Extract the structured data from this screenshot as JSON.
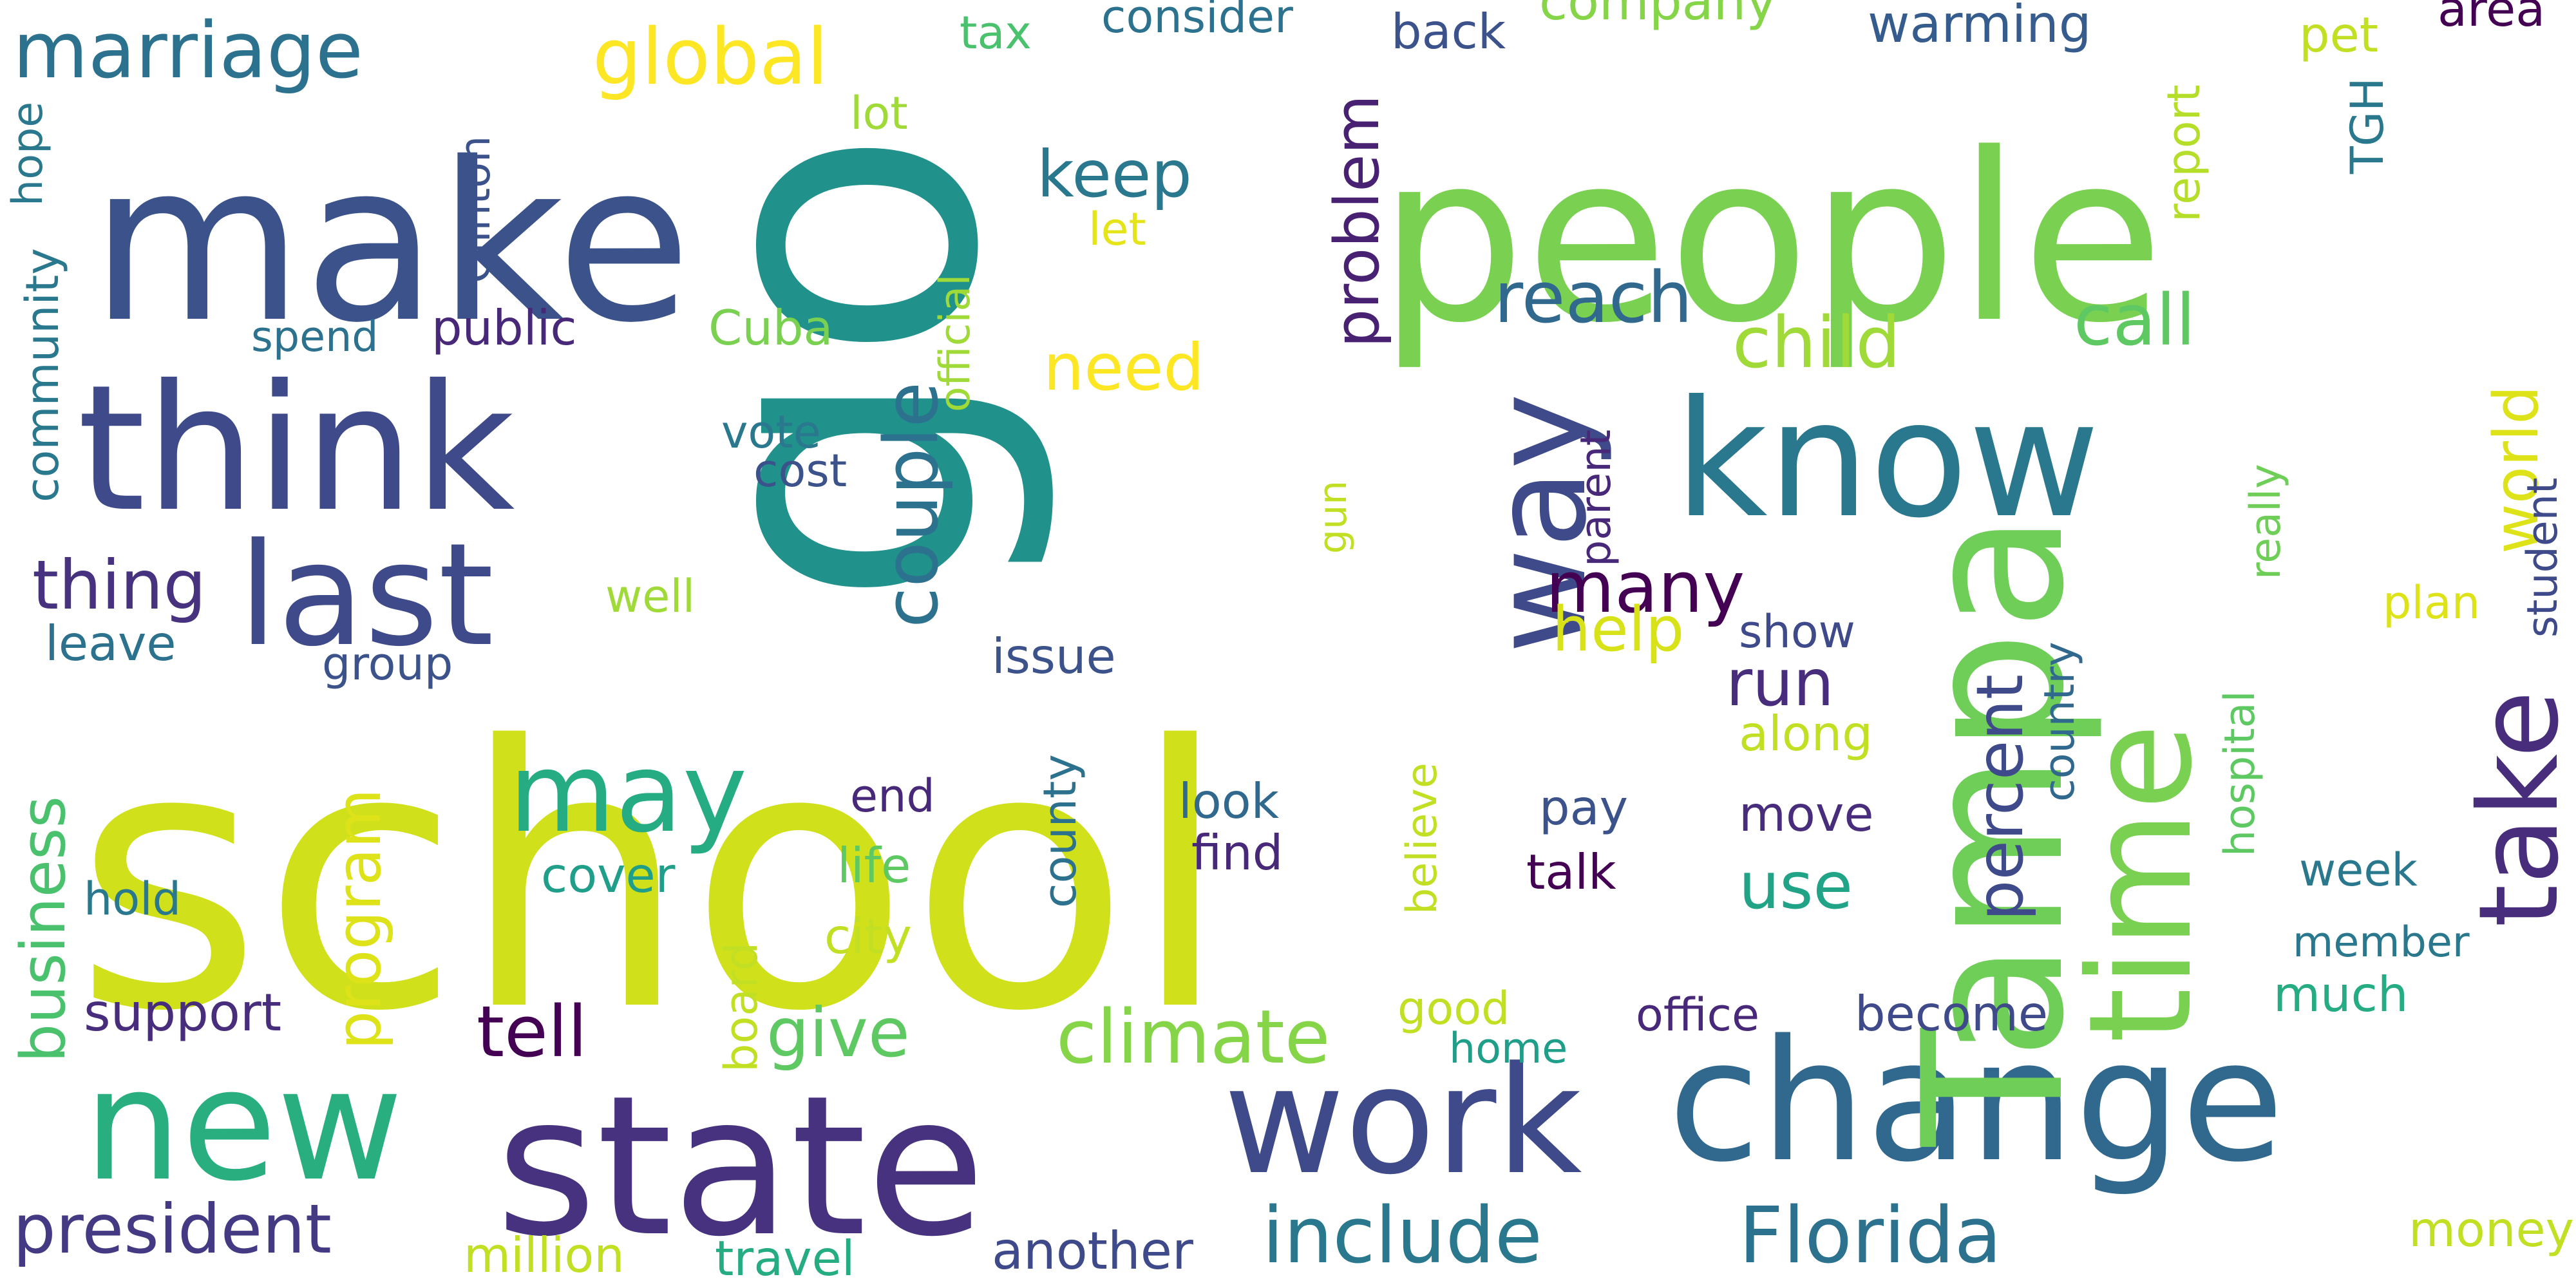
{
  "words": [
    {
      "text": "school",
      "color": "#d0e11c"
    },
    {
      "text": "go",
      "color": "#21918c"
    },
    {
      "text": "people",
      "color": "#7ad151"
    },
    {
      "text": "make",
      "color": "#3b528b"
    },
    {
      "text": "think",
      "color": "#3e4a89"
    },
    {
      "text": "state",
      "color": "#46327e"
    },
    {
      "text": "change",
      "color": "#31688e"
    },
    {
      "text": "new",
      "color": "#29af7f"
    },
    {
      "text": "work",
      "color": "#3e4a89"
    },
    {
      "text": "Tampa",
      "color": "#6ece58"
    },
    {
      "text": "know",
      "color": "#2a788e"
    },
    {
      "text": "time",
      "color": "#7ad151"
    },
    {
      "text": "way",
      "color": "#3e4a89"
    },
    {
      "text": "last",
      "color": "#3e4a89"
    },
    {
      "text": "take",
      "color": "#472d7b"
    },
    {
      "text": "may",
      "color": "#25ac82"
    },
    {
      "text": "include",
      "color": "#2a788e"
    },
    {
      "text": "Florida",
      "color": "#2c728e"
    },
    {
      "text": "president",
      "color": "#443983"
    },
    {
      "text": "couple",
      "color": "#2c728e"
    },
    {
      "text": "marriage",
      "color": "#2c728e"
    },
    {
      "text": "global",
      "color": "#fde725"
    },
    {
      "text": "climate",
      "color": "#86d549"
    },
    {
      "text": "many",
      "color": "#440154"
    },
    {
      "text": "problem",
      "color": "#482173"
    },
    {
      "text": "reach",
      "color": "#31688e"
    },
    {
      "text": "child",
      "color": "#a0da39"
    },
    {
      "text": "call",
      "color": "#5ec962"
    },
    {
      "text": "keep",
      "color": "#2a788e"
    },
    {
      "text": "thing",
      "color": "#46327e"
    },
    {
      "text": "run",
      "color": "#472d7b"
    },
    {
      "text": "percent",
      "color": "#3e4a89"
    },
    {
      "text": "give",
      "color": "#5ec962"
    },
    {
      "text": "tell",
      "color": "#440154"
    },
    {
      "text": "business",
      "color": "#4ac16d"
    },
    {
      "text": "program",
      "color": "#dde318"
    },
    {
      "text": "need",
      "color": "#fde725"
    },
    {
      "text": "help",
      "color": "#d8e219"
    },
    {
      "text": "use",
      "color": "#20a386"
    },
    {
      "text": "world",
      "color": "#dde318"
    },
    {
      "text": "warming",
      "color": "#365c8d"
    },
    {
      "text": "company",
      "color": "#86d549"
    },
    {
      "text": "back",
      "color": "#3b528b"
    },
    {
      "text": "consider",
      "color": "#2c728e"
    },
    {
      "text": "tax",
      "color": "#4ac16d"
    },
    {
      "text": "area",
      "color": "#440154"
    },
    {
      "text": "pet",
      "color": "#c2df23"
    },
    {
      "text": "TGH",
      "color": "#2a788e"
    },
    {
      "text": "report",
      "color": "#b5de2b"
    },
    {
      "text": "lot",
      "color": "#a0da39"
    },
    {
      "text": "let",
      "color": "#e5e419"
    },
    {
      "text": "official",
      "color": "#a0da39"
    },
    {
      "text": "Clinton",
      "color": "#3b528b"
    },
    {
      "text": "hope",
      "color": "#2a788e"
    },
    {
      "text": "community",
      "color": "#2a788e"
    },
    {
      "text": "spend",
      "color": "#2c728e"
    },
    {
      "text": "public",
      "color": "#482878"
    },
    {
      "text": "Cuba",
      "color": "#7ad151"
    },
    {
      "text": "vote",
      "color": "#2a788e"
    },
    {
      "text": "cost",
      "color": "#3b528b"
    },
    {
      "text": "parent",
      "color": "#482878"
    },
    {
      "text": "really",
      "color": "#6ece58"
    },
    {
      "text": "student",
      "color": "#3e4a89"
    },
    {
      "text": "plan",
      "color": "#dde318"
    },
    {
      "text": "gun",
      "color": "#c2df23"
    },
    {
      "text": "well",
      "color": "#a0da39"
    },
    {
      "text": "leave",
      "color": "#2c728e"
    },
    {
      "text": "group",
      "color": "#3b528b"
    },
    {
      "text": "issue",
      "color": "#3b528b"
    },
    {
      "text": "show",
      "color": "#3e4a89"
    },
    {
      "text": "country",
      "color": "#31688e"
    },
    {
      "text": "along",
      "color": "#c2df23"
    },
    {
      "text": "hospital",
      "color": "#5ec962"
    },
    {
      "text": "believe",
      "color": "#c2df23"
    },
    {
      "text": "county",
      "color": "#2c728e"
    },
    {
      "text": "end",
      "color": "#482878"
    },
    {
      "text": "look",
      "color": "#31688e"
    },
    {
      "text": "find",
      "color": "#482878"
    },
    {
      "text": "pay",
      "color": "#3b528b"
    },
    {
      "text": "talk",
      "color": "#440154"
    },
    {
      "text": "move",
      "color": "#472d7b"
    },
    {
      "text": "life",
      "color": "#5ec962"
    },
    {
      "text": "cover",
      "color": "#1f9e89"
    },
    {
      "text": "city",
      "color": "#c2df23"
    },
    {
      "text": "hold",
      "color": "#2a788e"
    },
    {
      "text": "week",
      "color": "#2a788e"
    },
    {
      "text": "member",
      "color": "#2a788e"
    },
    {
      "text": "much",
      "color": "#25ac82"
    },
    {
      "text": "good",
      "color": "#c2df23"
    },
    {
      "text": "home",
      "color": "#1f9e89"
    },
    {
      "text": "office",
      "color": "#482878"
    },
    {
      "text": "become",
      "color": "#3e4a89"
    },
    {
      "text": "support",
      "color": "#472d7b"
    },
    {
      "text": "board",
      "color": "#c2df23"
    },
    {
      "text": "million",
      "color": "#c2df23"
    },
    {
      "text": "travel",
      "color": "#25ac82"
    },
    {
      "text": "another",
      "color": "#3e4a89"
    },
    {
      "text": "money",
      "color": "#c2df23"
    }
  ]
}
